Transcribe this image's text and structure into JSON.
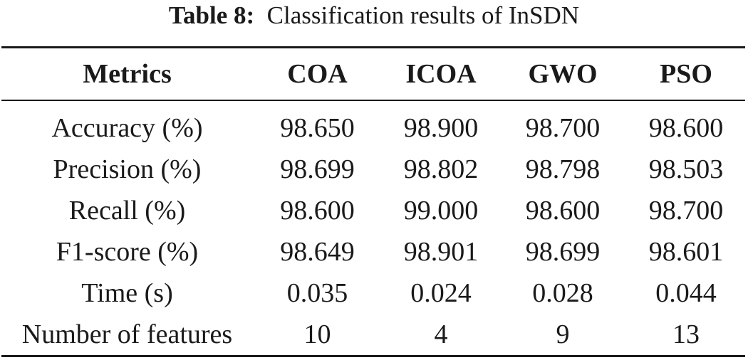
{
  "caption": {
    "label": "Table 8:",
    "text": "Classification results of InSDN"
  },
  "table": {
    "headers": [
      "Metrics",
      "COA",
      "ICOA",
      "GWO",
      "PSO"
    ],
    "rows": [
      [
        "Accuracy (%)",
        "98.650",
        "98.900",
        "98.700",
        "98.600"
      ],
      [
        "Precision (%)",
        "98.699",
        "98.802",
        "98.798",
        "98.503"
      ],
      [
        "Recall (%)",
        "98.600",
        "99.000",
        "98.600",
        "98.700"
      ],
      [
        "F1-score (%)",
        "98.649",
        "98.901",
        "98.699",
        "98.601"
      ],
      [
        "Time (s)",
        "0.035",
        "0.024",
        "0.028",
        "0.044"
      ],
      [
        "Number of features",
        "10",
        "4",
        "9",
        "13"
      ]
    ]
  }
}
